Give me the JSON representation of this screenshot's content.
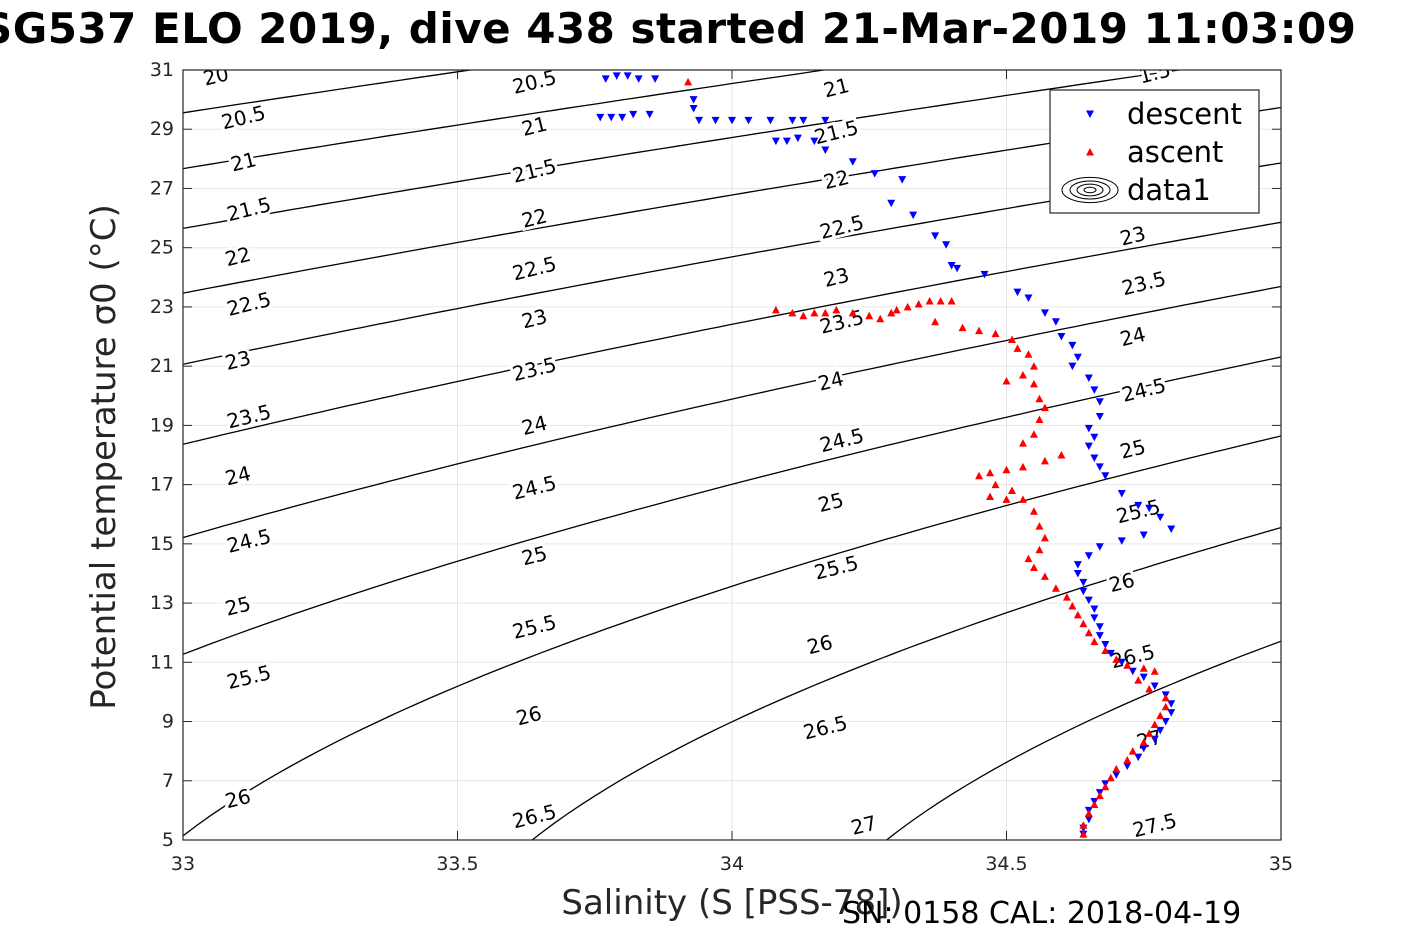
{
  "title": "SG537 ELO 2019, dive 438 started 21-Mar-2019 11:03:09",
  "footer": "SN: 0158  CAL: 2018-04-19",
  "chart_data": {
    "type": "scatter",
    "xlabel": "Salinity (S [PSS-78])",
    "ylabel": "Potential temperature σ0 (°C)",
    "xlim": [
      33,
      35
    ],
    "ylim": [
      5,
      31
    ],
    "xticks": [
      "33",
      "33.5",
      "34",
      "34.5",
      "35"
    ],
    "yticks": [
      "5",
      "7",
      "9",
      "11",
      "13",
      "15",
      "17",
      "19",
      "21",
      "23",
      "25",
      "27",
      "29",
      "31"
    ],
    "grid": true,
    "legend_position": "top-right",
    "legend": [
      "descent",
      "ascent",
      "data1"
    ],
    "colors": {
      "descent": "#0000ff",
      "ascent": "#ff0000",
      "contour": "#000000",
      "grid": "#e6e6e6"
    },
    "contours": {
      "levels": [
        20,
        20.5,
        21,
        21.5,
        22,
        22.5,
        23,
        23.5,
        24,
        24.5,
        25,
        25.5,
        26,
        26.5,
        27,
        27.5
      ],
      "labels": [
        {
          "text": "20",
          "s": 33.06,
          "t": 30.8
        },
        {
          "text": "20.5",
          "s": 33.11,
          "t": 29.4
        },
        {
          "text": "21",
          "s": 33.11,
          "t": 27.9
        },
        {
          "text": "21.5",
          "s": 33.12,
          "t": 26.3
        },
        {
          "text": "22",
          "s": 33.1,
          "t": 24.7
        },
        {
          "text": "22.5",
          "s": 33.12,
          "t": 23.1
        },
        {
          "text": "23",
          "s": 33.1,
          "t": 21.2
        },
        {
          "text": "23.5",
          "s": 33.12,
          "t": 19.3
        },
        {
          "text": "24",
          "s": 33.1,
          "t": 17.3
        },
        {
          "text": "24.5",
          "s": 33.12,
          "t": 15.1
        },
        {
          "text": "25",
          "s": 33.1,
          "t": 12.9
        },
        {
          "text": "25.5",
          "s": 33.12,
          "t": 10.5
        },
        {
          "text": "26",
          "s": 33.1,
          "t": 6.4
        },
        {
          "text": "20.5",
          "s": 33.64,
          "t": 30.6
        },
        {
          "text": "21",
          "s": 33.64,
          "t": 29.1
        },
        {
          "text": "21.5",
          "s": 33.64,
          "t": 27.6
        },
        {
          "text": "22",
          "s": 33.64,
          "t": 26.0
        },
        {
          "text": "22.5",
          "s": 33.64,
          "t": 24.3
        },
        {
          "text": "23",
          "s": 33.64,
          "t": 22.6
        },
        {
          "text": "23.5",
          "s": 33.64,
          "t": 20.9
        },
        {
          "text": "24",
          "s": 33.64,
          "t": 19.0
        },
        {
          "text": "24.5",
          "s": 33.64,
          "t": 16.9
        },
        {
          "text": "25",
          "s": 33.64,
          "t": 14.6
        },
        {
          "text": "25.5",
          "s": 33.64,
          "t": 12.2
        },
        {
          "text": "26",
          "s": 33.63,
          "t": 9.2
        },
        {
          "text": "26.5",
          "s": 33.64,
          "t": 5.8
        },
        {
          "text": "21",
          "s": 34.19,
          "t": 30.4
        },
        {
          "text": "21.5",
          "s": 34.19,
          "t": 28.9
        },
        {
          "text": "22",
          "s": 34.19,
          "t": 27.3
        },
        {
          "text": "22.5",
          "s": 34.2,
          "t": 25.7
        },
        {
          "text": "23",
          "s": 34.19,
          "t": 24.0
        },
        {
          "text": "23.5",
          "s": 34.2,
          "t": 22.5
        },
        {
          "text": "24",
          "s": 34.18,
          "t": 20.5
        },
        {
          "text": "24.5",
          "s": 34.2,
          "t": 18.5
        },
        {
          "text": "25",
          "s": 34.18,
          "t": 16.4
        },
        {
          "text": "25.5",
          "s": 34.19,
          "t": 14.2
        },
        {
          "text": "26",
          "s": 34.16,
          "t": 11.6
        },
        {
          "text": "26.5",
          "s": 34.17,
          "t": 8.8
        },
        {
          "text": "27",
          "s": 34.24,
          "t": 5.5
        },
        {
          "text": "23",
          "s": 34.73,
          "t": 25.4
        },
        {
          "text": "23.5",
          "s": 34.75,
          "t": 23.8
        },
        {
          "text": "24",
          "s": 34.73,
          "t": 22.0
        },
        {
          "text": "24.5",
          "s": 34.75,
          "t": 20.2
        },
        {
          "text": "25",
          "s": 34.73,
          "t": 18.2
        },
        {
          "text": "25.5",
          "s": 34.74,
          "t": 16.1
        },
        {
          "text": "26",
          "s": 34.71,
          "t": 13.7
        },
        {
          "text": "26.5",
          "s": 34.73,
          "t": 11.2
        },
        {
          "text": "27",
          "s": 34.76,
          "t": 8.4
        },
        {
          "text": "27.5",
          "s": 34.77,
          "t": 5.5
        },
        {
          "text": "1.5",
          "s": 34.77,
          "t": 30.9
        }
      ]
    },
    "series": [
      {
        "name": "descent",
        "marker": "triangle-down",
        "points": [
          [
            33.77,
            30.7
          ],
          [
            33.79,
            30.8
          ],
          [
            33.81,
            30.8
          ],
          [
            33.83,
            30.7
          ],
          [
            33.86,
            30.7
          ],
          [
            33.76,
            29.4
          ],
          [
            33.78,
            29.4
          ],
          [
            33.8,
            29.4
          ],
          [
            33.82,
            29.5
          ],
          [
            33.85,
            29.5
          ],
          [
            33.93,
            30.0
          ],
          [
            33.93,
            29.7
          ],
          [
            33.94,
            29.3
          ],
          [
            33.97,
            29.3
          ],
          [
            34.0,
            29.3
          ],
          [
            34.03,
            29.3
          ],
          [
            34.07,
            29.3
          ],
          [
            34.11,
            29.3
          ],
          [
            34.13,
            29.3
          ],
          [
            34.17,
            29.3
          ],
          [
            34.08,
            28.6
          ],
          [
            34.1,
            28.6
          ],
          [
            34.12,
            28.7
          ],
          [
            34.15,
            28.6
          ],
          [
            34.17,
            28.3
          ],
          [
            34.22,
            27.9
          ],
          [
            34.26,
            27.5
          ],
          [
            34.31,
            27.3
          ],
          [
            34.29,
            26.5
          ],
          [
            34.33,
            26.1
          ],
          [
            34.37,
            25.4
          ],
          [
            34.39,
            25.1
          ],
          [
            34.4,
            24.4
          ],
          [
            34.41,
            24.3
          ],
          [
            34.46,
            24.1
          ],
          [
            34.52,
            23.5
          ],
          [
            34.54,
            23.3
          ],
          [
            34.57,
            22.8
          ],
          [
            34.59,
            22.5
          ],
          [
            34.6,
            22.0
          ],
          [
            34.62,
            21.7
          ],
          [
            34.63,
            21.3
          ],
          [
            34.62,
            21.0
          ],
          [
            34.65,
            20.6
          ],
          [
            34.66,
            20.2
          ],
          [
            34.67,
            19.8
          ],
          [
            34.67,
            19.3
          ],
          [
            34.65,
            18.9
          ],
          [
            34.66,
            18.6
          ],
          [
            34.65,
            18.3
          ],
          [
            34.66,
            17.9
          ],
          [
            34.67,
            17.6
          ],
          [
            34.68,
            17.3
          ],
          [
            34.71,
            16.7
          ],
          [
            34.74,
            16.3
          ],
          [
            34.76,
            16.2
          ],
          [
            34.78,
            15.9
          ],
          [
            34.8,
            15.5
          ],
          [
            34.75,
            15.3
          ],
          [
            34.71,
            15.1
          ],
          [
            34.67,
            14.9
          ],
          [
            34.65,
            14.6
          ],
          [
            34.63,
            14.3
          ],
          [
            34.63,
            14.0
          ],
          [
            34.64,
            13.7
          ],
          [
            34.64,
            13.4
          ],
          [
            34.65,
            13.1
          ],
          [
            34.66,
            12.8
          ],
          [
            34.66,
            12.5
          ],
          [
            34.67,
            12.2
          ],
          [
            34.67,
            11.9
          ],
          [
            34.68,
            11.6
          ],
          [
            34.69,
            11.3
          ],
          [
            34.71,
            11.0
          ],
          [
            34.73,
            10.7
          ],
          [
            34.75,
            10.5
          ],
          [
            34.77,
            10.2
          ],
          [
            34.79,
            9.9
          ],
          [
            34.8,
            9.6
          ],
          [
            34.8,
            9.3
          ],
          [
            34.79,
            9.0
          ],
          [
            34.78,
            8.7
          ],
          [
            34.77,
            8.4
          ],
          [
            34.75,
            8.1
          ],
          [
            34.74,
            7.8
          ],
          [
            34.72,
            7.5
          ],
          [
            34.7,
            7.2
          ],
          [
            34.68,
            6.9
          ],
          [
            34.67,
            6.6
          ],
          [
            34.66,
            6.3
          ],
          [
            34.65,
            6.0
          ],
          [
            34.65,
            5.7
          ],
          [
            34.64,
            5.4
          ],
          [
            34.64,
            5.2
          ]
        ]
      },
      {
        "name": "ascent",
        "marker": "triangle-up",
        "points": [
          [
            33.92,
            30.6
          ],
          [
            34.08,
            22.9
          ],
          [
            34.11,
            22.8
          ],
          [
            34.13,
            22.7
          ],
          [
            34.15,
            22.8
          ],
          [
            34.17,
            22.8
          ],
          [
            34.19,
            22.9
          ],
          [
            34.22,
            22.8
          ],
          [
            34.25,
            22.7
          ],
          [
            34.27,
            22.6
          ],
          [
            34.29,
            22.8
          ],
          [
            34.3,
            22.9
          ],
          [
            34.32,
            23.0
          ],
          [
            34.34,
            23.1
          ],
          [
            34.36,
            23.2
          ],
          [
            34.38,
            23.2
          ],
          [
            34.4,
            23.2
          ],
          [
            34.37,
            22.5
          ],
          [
            34.42,
            22.3
          ],
          [
            34.45,
            22.2
          ],
          [
            34.48,
            22.1
          ],
          [
            34.51,
            21.9
          ],
          [
            34.52,
            21.6
          ],
          [
            34.54,
            21.4
          ],
          [
            34.55,
            21.0
          ],
          [
            34.53,
            20.7
          ],
          [
            34.5,
            20.5
          ],
          [
            34.55,
            20.4
          ],
          [
            34.56,
            19.9
          ],
          [
            34.57,
            19.6
          ],
          [
            34.56,
            19.2
          ],
          [
            34.55,
            18.7
          ],
          [
            34.53,
            18.4
          ],
          [
            34.6,
            18.0
          ],
          [
            34.57,
            17.8
          ],
          [
            34.53,
            17.6
          ],
          [
            34.5,
            17.5
          ],
          [
            34.47,
            17.4
          ],
          [
            34.45,
            17.3
          ],
          [
            34.48,
            17.0
          ],
          [
            34.51,
            16.8
          ],
          [
            34.47,
            16.6
          ],
          [
            34.5,
            16.5
          ],
          [
            34.53,
            16.5
          ],
          [
            34.55,
            16.1
          ],
          [
            34.56,
            15.6
          ],
          [
            34.57,
            15.2
          ],
          [
            34.56,
            14.8
          ],
          [
            34.54,
            14.5
          ],
          [
            34.55,
            14.2
          ],
          [
            34.57,
            13.9
          ],
          [
            34.59,
            13.5
          ],
          [
            34.61,
            13.2
          ],
          [
            34.62,
            12.9
          ],
          [
            34.63,
            12.6
          ],
          [
            34.64,
            12.3
          ],
          [
            34.65,
            12.0
          ],
          [
            34.66,
            11.7
          ],
          [
            34.68,
            11.4
          ],
          [
            34.7,
            11.1
          ],
          [
            34.72,
            10.9
          ],
          [
            34.75,
            10.8
          ],
          [
            34.77,
            10.7
          ],
          [
            34.74,
            10.4
          ],
          [
            34.76,
            10.1
          ],
          [
            34.79,
            9.8
          ],
          [
            34.79,
            9.5
          ],
          [
            34.78,
            9.2
          ],
          [
            34.77,
            8.9
          ],
          [
            34.76,
            8.6
          ],
          [
            34.75,
            8.3
          ],
          [
            34.73,
            8.0
          ],
          [
            34.72,
            7.7
          ],
          [
            34.7,
            7.4
          ],
          [
            34.69,
            7.1
          ],
          [
            34.68,
            6.8
          ],
          [
            34.67,
            6.5
          ],
          [
            34.66,
            6.2
          ],
          [
            34.65,
            5.9
          ],
          [
            34.64,
            5.5
          ],
          [
            34.64,
            5.2
          ]
        ]
      }
    ]
  }
}
